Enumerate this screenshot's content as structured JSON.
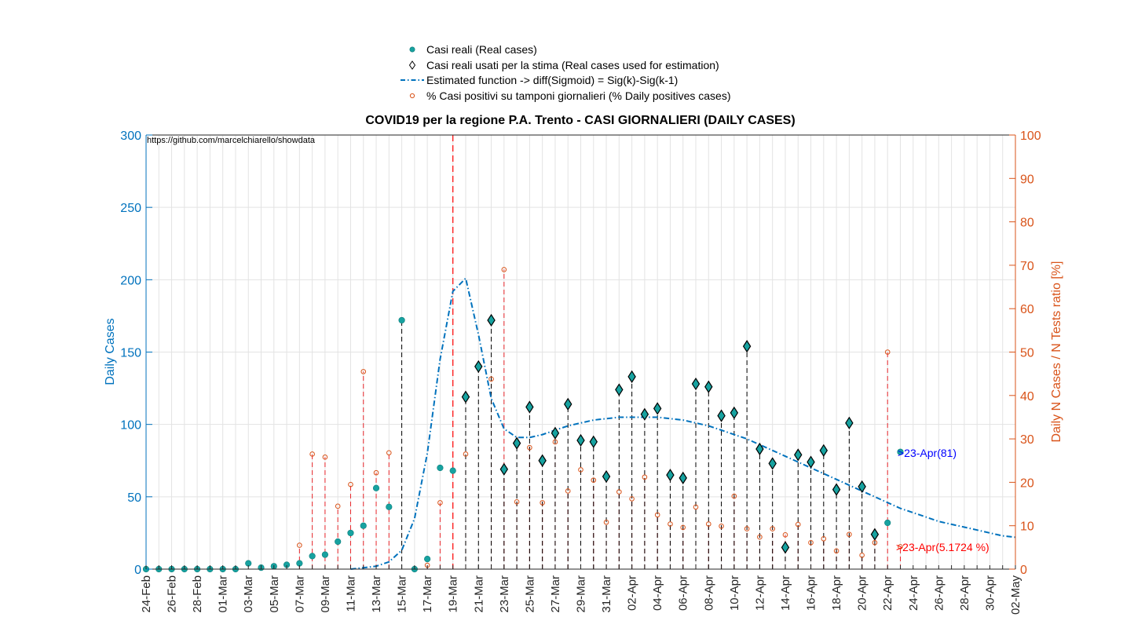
{
  "chart_data": {
    "type": "scatter",
    "title": "COVID19 per la regione P.A. Trento - CASI GIORNALIERI (DAILY CASES)",
    "watermark": "https://github.com/marcelchiarello/showdata",
    "ylabel_left": "Daily Cases",
    "ylabel_right": "Daily N Cases / N Tests ratio [%]",
    "ylim_left": [
      0,
      300
    ],
    "ylim_right": [
      0,
      100
    ],
    "yticks_left": [
      "0",
      "50",
      "100",
      "150",
      "200",
      "250",
      "300"
    ],
    "yticks_right": [
      "0",
      "10",
      "20",
      "30",
      "40",
      "50",
      "60",
      "70",
      "80",
      "90",
      "100"
    ],
    "x_dates": [
      "24-Feb",
      "25-Feb",
      "26-Feb",
      "27-Feb",
      "28-Feb",
      "29-Feb",
      "01-Mar",
      "02-Mar",
      "03-Mar",
      "04-Mar",
      "05-Mar",
      "06-Mar",
      "07-Mar",
      "08-Mar",
      "09-Mar",
      "10-Mar",
      "11-Mar",
      "12-Mar",
      "13-Mar",
      "14-Mar",
      "15-Mar",
      "16-Mar",
      "17-Mar",
      "18-Mar",
      "19-Mar",
      "20-Mar",
      "21-Mar",
      "22-Mar",
      "23-Mar",
      "24-Mar",
      "25-Mar",
      "26-Mar",
      "27-Mar",
      "28-Mar",
      "29-Mar",
      "30-Mar",
      "31-Mar",
      "01-Apr",
      "02-Apr",
      "03-Apr",
      "04-Apr",
      "05-Apr",
      "06-Apr",
      "07-Apr",
      "08-Apr",
      "09-Apr",
      "10-Apr",
      "11-Apr",
      "12-Apr",
      "13-Apr",
      "14-Apr",
      "15-Apr",
      "16-Apr",
      "17-Apr",
      "18-Apr",
      "19-Apr",
      "20-Apr",
      "21-Apr",
      "22-Apr",
      "23-Apr",
      "24-Apr",
      "25-Apr",
      "26-Apr",
      "27-Apr",
      "28-Apr",
      "29-Apr",
      "30-Apr",
      "01-May",
      "02-May"
    ],
    "x_tick_labels": [
      "24-Feb",
      "26-Feb",
      "28-Feb",
      "01-Mar",
      "03-Mar",
      "05-Mar",
      "07-Mar",
      "09-Mar",
      "11-Mar",
      "13-Mar",
      "15-Mar",
      "17-Mar",
      "19-Mar",
      "21-Mar",
      "23-Mar",
      "25-Mar",
      "27-Mar",
      "29-Mar",
      "31-Mar",
      "02-Apr",
      "04-Apr",
      "06-Apr",
      "08-Apr",
      "10-Apr",
      "12-Apr",
      "14-Apr",
      "16-Apr",
      "18-Apr",
      "20-Apr",
      "22-Apr",
      "24-Apr",
      "26-Apr",
      "28-Apr",
      "30-Apr",
      "02-May"
    ],
    "series": [
      {
        "name": "Casi reali (Real cases)",
        "color": "#17a2a0",
        "marker": "filled-circle",
        "x": [
          "24-Feb",
          "25-Feb",
          "26-Feb",
          "27-Feb",
          "28-Feb",
          "29-Feb",
          "01-Mar",
          "02-Mar",
          "03-Mar",
          "04-Mar",
          "05-Mar",
          "06-Mar",
          "07-Mar",
          "08-Mar",
          "09-Mar",
          "10-Mar",
          "11-Mar",
          "12-Mar",
          "13-Mar",
          "14-Mar",
          "15-Mar",
          "16-Mar",
          "17-Mar",
          "18-Mar",
          "19-Mar",
          "20-Mar",
          "21-Mar",
          "22-Mar",
          "23-Mar",
          "24-Mar",
          "25-Mar",
          "26-Mar",
          "27-Mar",
          "28-Mar",
          "29-Mar",
          "30-Mar",
          "31-Mar",
          "01-Apr",
          "02-Apr",
          "03-Apr",
          "04-Apr",
          "05-Apr",
          "06-Apr",
          "07-Apr",
          "08-Apr",
          "09-Apr",
          "10-Apr",
          "11-Apr",
          "12-Apr",
          "13-Apr",
          "14-Apr",
          "15-Apr",
          "16-Apr",
          "17-Apr",
          "18-Apr",
          "19-Apr",
          "20-Apr",
          "21-Apr",
          "22-Apr",
          "23-Apr"
        ],
        "values": [
          0,
          0,
          0,
          0,
          0,
          0,
          0,
          0,
          4,
          1,
          2,
          3,
          4,
          9,
          10,
          19,
          25,
          30,
          56,
          43,
          172,
          0,
          7,
          70,
          68,
          119,
          140,
          172,
          69,
          87,
          112,
          75,
          94,
          114,
          89,
          88,
          64,
          124,
          133,
          107,
          111,
          65,
          63,
          128,
          126,
          106,
          108,
          154,
          83,
          73,
          15,
          79,
          74,
          82,
          55,
          101,
          57,
          24,
          32,
          81
        ]
      },
      {
        "name": "Casi reali usati per la stima (Real cases used for estimation)",
        "color": "#000000",
        "marker": "diamond",
        "x": [
          "20-Mar",
          "21-Mar",
          "22-Mar",
          "23-Mar",
          "24-Mar",
          "25-Mar",
          "26-Mar",
          "27-Mar",
          "28-Mar",
          "29-Mar",
          "30-Mar",
          "31-Mar",
          "01-Apr",
          "02-Apr",
          "03-Apr",
          "04-Apr",
          "05-Apr",
          "06-Apr",
          "07-Apr",
          "08-Apr",
          "09-Apr",
          "10-Apr",
          "11-Apr",
          "12-Apr",
          "13-Apr",
          "14-Apr",
          "15-Apr",
          "16-Apr",
          "17-Apr",
          "18-Apr",
          "19-Apr",
          "20-Apr",
          "21-Apr"
        ],
        "values": [
          119,
          140,
          172,
          69,
          87,
          112,
          75,
          94,
          114,
          89,
          88,
          64,
          124,
          133,
          107,
          111,
          65,
          63,
          128,
          126,
          106,
          108,
          154,
          83,
          73,
          15,
          79,
          74,
          82,
          55,
          101,
          57,
          24
        ]
      },
      {
        "name": "Estimated function -> diff(Sigmoid) = Sig(k)-Sig(k-1)",
        "color": "#0072bd",
        "line": "dash-dot",
        "x": [
          "11-Mar",
          "12-Mar",
          "13-Mar",
          "14-Mar",
          "15-Mar",
          "16-Mar",
          "17-Mar",
          "18-Mar",
          "19-Mar",
          "20-Mar",
          "21-Mar",
          "22-Mar",
          "23-Mar",
          "24-Mar",
          "25-Mar",
          "26-Mar",
          "27-Mar",
          "28-Mar",
          "29-Mar",
          "30-Mar",
          "31-Mar",
          "01-Apr",
          "02-Apr",
          "03-Apr",
          "04-Apr",
          "05-Apr",
          "06-Apr",
          "07-Apr",
          "08-Apr",
          "09-Apr",
          "10-Apr",
          "11-Apr",
          "12-Apr",
          "13-Apr",
          "14-Apr",
          "15-Apr",
          "16-Apr",
          "17-Apr",
          "18-Apr",
          "19-Apr",
          "20-Apr",
          "21-Apr",
          "22-Apr",
          "23-Apr",
          "24-Apr",
          "25-Apr",
          "26-Apr",
          "27-Apr",
          "28-Apr",
          "29-Apr",
          "30-Apr",
          "01-May",
          "02-May"
        ],
        "values": [
          0,
          1,
          2,
          5,
          13,
          35,
          80,
          145,
          192,
          201,
          162,
          118,
          97,
          91,
          91,
          93,
          96,
          99,
          101,
          103,
          104,
          105,
          105,
          105,
          105,
          104,
          103,
          101,
          99,
          96,
          93,
          90,
          86,
          82,
          78,
          74,
          70,
          66,
          62,
          58,
          54,
          50,
          46,
          42,
          39,
          36,
          33,
          31,
          29,
          27,
          25,
          23,
          22
        ]
      },
      {
        "name": "% Casi positivi su tamponi giornalieri (% Daily positives cases)",
        "color": "#d95319",
        "marker": "open-circle",
        "axis": "right",
        "x": [
          "07-Mar",
          "08-Mar",
          "09-Mar",
          "10-Mar",
          "11-Mar",
          "12-Mar",
          "13-Mar",
          "14-Mar",
          "17-Mar",
          "18-Mar",
          "20-Mar",
          "22-Mar",
          "23-Mar",
          "24-Mar",
          "25-Mar",
          "26-Mar",
          "27-Mar",
          "28-Mar",
          "29-Mar",
          "30-Mar",
          "31-Mar",
          "01-Apr",
          "02-Apr",
          "03-Apr",
          "04-Apr",
          "05-Apr",
          "06-Apr",
          "07-Apr",
          "08-Apr",
          "09-Apr",
          "10-Apr",
          "11-Apr",
          "12-Apr",
          "13-Apr",
          "14-Apr",
          "15-Apr",
          "16-Apr",
          "17-Apr",
          "18-Apr",
          "19-Apr",
          "20-Apr",
          "21-Apr",
          "22-Apr",
          "23-Apr"
        ],
        "values": [
          5.5,
          26.5,
          25.8,
          14.5,
          19.5,
          45.5,
          22.2,
          26.8,
          0.9,
          15.3,
          26.5,
          43.8,
          69.0,
          15.5,
          28.0,
          15.3,
          29.3,
          18.0,
          22.9,
          20.5,
          10.8,
          17.8,
          16.2,
          21.2,
          12.5,
          10.4,
          9.6,
          14.3,
          10.4,
          9.9,
          16.8,
          9.3,
          7.4,
          9.3,
          7.9,
          10.3,
          6.1,
          7.0,
          4.2,
          8.0,
          3.2,
          6.1,
          50.0,
          5.1724
        ]
      }
    ],
    "annotations": [
      {
        "text": ">23-Apr(81)",
        "color": "#0000ff"
      },
      {
        "text": ">23-Apr(5.1724 %)",
        "color": "#ff0000"
      }
    ],
    "vline": {
      "x": "19-Mar",
      "color": "#ff0000",
      "style": "dashed"
    },
    "grid": true,
    "legend_position": "top-center"
  }
}
